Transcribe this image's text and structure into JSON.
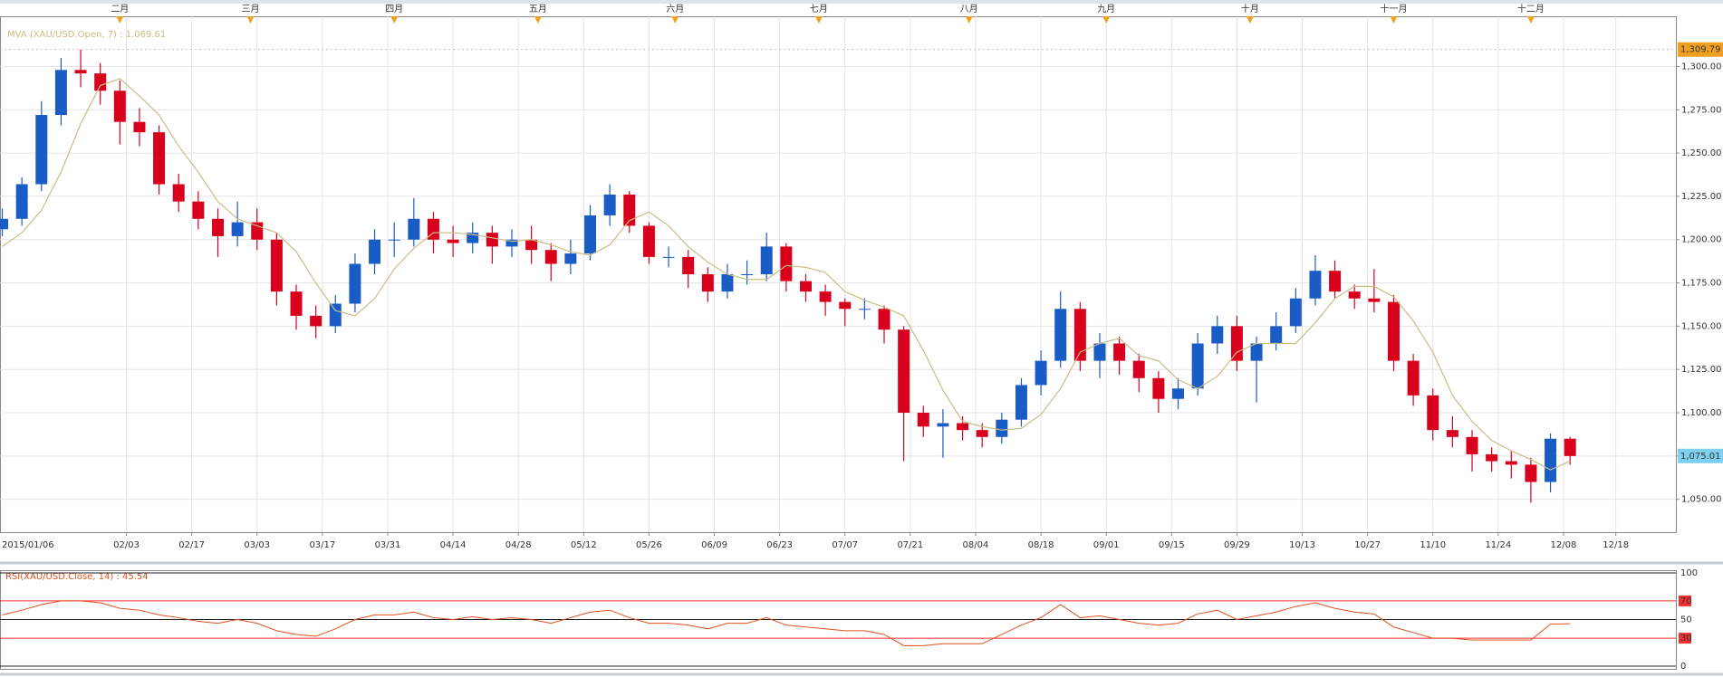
{
  "chart_data": [
    {
      "type": "candlestick",
      "legend": "MVA (XAU/USD.Open, 7) : 1,069.61",
      "x": [
        1,
        4,
        7,
        10,
        13,
        16,
        19,
        22,
        25,
        28,
        31,
        34,
        37,
        40,
        43,
        46,
        49,
        52,
        55,
        58,
        61,
        64,
        67,
        70,
        73,
        76,
        79,
        82,
        85,
        88,
        91,
        94,
        97,
        100,
        103,
        106,
        109,
        112,
        115,
        118,
        121,
        124,
        127,
        130,
        133,
        136,
        139,
        142,
        145,
        148,
        151,
        154,
        157,
        160,
        163,
        166,
        169,
        172,
        175,
        178,
        181,
        184,
        187,
        190,
        193,
        196,
        199,
        202,
        205,
        208,
        211,
        214,
        217,
        220,
        223,
        226,
        229,
        232,
        235,
        238,
        241
      ],
      "open": [
        1206,
        1212,
        1232,
        1272,
        1298,
        1296,
        1286,
        1268,
        1262,
        1232,
        1222,
        1212,
        1202,
        1210,
        1200,
        1170,
        1156,
        1150,
        1163,
        1186,
        1200,
        1200,
        1212,
        1200,
        1198,
        1204,
        1196,
        1200,
        1194,
        1186,
        1192,
        1214,
        1226,
        1208,
        1190,
        1190,
        1180,
        1170,
        1180,
        1180,
        1196,
        1176,
        1170,
        1164,
        1160,
        1160,
        1148,
        1100,
        1092,
        1094,
        1090,
        1086,
        1096,
        1116,
        1130,
        1160,
        1130,
        1140,
        1130,
        1120,
        1108,
        1114,
        1140,
        1150,
        1130,
        1140,
        1150,
        1166,
        1182,
        1170,
        1166,
        1164,
        1130,
        1110,
        1090,
        1086,
        1076,
        1072,
        1070,
        1060,
        1085
      ],
      "high": [
        1218,
        1236,
        1280,
        1305,
        1309.79,
        1302,
        1292,
        1276,
        1266,
        1238,
        1228,
        1218,
        1222,
        1218,
        1204,
        1174,
        1162,
        1168,
        1192,
        1206,
        1210,
        1224,
        1216,
        1208,
        1210,
        1208,
        1206,
        1208,
        1198,
        1200,
        1220,
        1232,
        1228,
        1210,
        1196,
        1194,
        1184,
        1186,
        1188,
        1204,
        1198,
        1180,
        1174,
        1166,
        1166,
        1162,
        1150,
        1104,
        1102,
        1098,
        1094,
        1100,
        1120,
        1136,
        1170,
        1164,
        1146,
        1144,
        1134,
        1124,
        1120,
        1146,
        1156,
        1156,
        1144,
        1158,
        1172,
        1191,
        1188,
        1174,
        1183,
        1168,
        1134,
        1114,
        1098,
        1090,
        1080,
        1078,
        1074,
        1088,
        1086
      ],
      "low": [
        1202,
        1208,
        1228,
        1266,
        1288,
        1278,
        1255,
        1254,
        1226,
        1216,
        1206,
        1190,
        1196,
        1194,
        1162,
        1148,
        1143,
        1146,
        1158,
        1180,
        1190,
        1196,
        1192,
        1190,
        1192,
        1186,
        1190,
        1186,
        1176,
        1180,
        1188,
        1208,
        1204,
        1186,
        1184,
        1172,
        1164,
        1166,
        1174,
        1176,
        1170,
        1164,
        1156,
        1150,
        1154,
        1140,
        1072,
        1086,
        1074,
        1084,
        1080,
        1082,
        1092,
        1110,
        1126,
        1124,
        1120,
        1122,
        1112,
        1100,
        1102,
        1110,
        1134,
        1124,
        1106,
        1136,
        1146,
        1162,
        1166,
        1160,
        1158,
        1124,
        1104,
        1084,
        1080,
        1066,
        1066,
        1062,
        1048,
        1054,
        1070
      ],
      "close": [
        1212,
        1232,
        1272,
        1298,
        1296,
        1286,
        1268,
        1262,
        1232,
        1222,
        1212,
        1202,
        1210,
        1200,
        1170,
        1156,
        1150,
        1163,
        1186,
        1200,
        1200,
        1212,
        1200,
        1198,
        1204,
        1196,
        1200,
        1194,
        1186,
        1192,
        1214,
        1226,
        1208,
        1190,
        1190,
        1180,
        1170,
        1180,
        1180,
        1196,
        1176,
        1170,
        1164,
        1160,
        1160,
        1148,
        1100,
        1092,
        1094,
        1090,
        1086,
        1096,
        1116,
        1130,
        1160,
        1130,
        1140,
        1130,
        1120,
        1108,
        1114,
        1140,
        1150,
        1130,
        1140,
        1150,
        1166,
        1182,
        1170,
        1166,
        1164,
        1130,
        1110,
        1090,
        1086,
        1076,
        1072,
        1070,
        1060,
        1085,
        1075.01
      ],
      "up_color": "#1a5cc6",
      "down_color": "#d8001c",
      "series": [
        {
          "name": "MVA (XAU/USD.Open, 7)",
          "color": "#c9bd85",
          "values": [
            1196,
            1204,
            1217,
            1239,
            1267,
            1289,
            1293,
            1283,
            1272,
            1254,
            1239,
            1222,
            1212,
            1208,
            1204,
            1193,
            1175,
            1159,
            1156,
            1166,
            1183,
            1195,
            1204,
            1204,
            1203,
            1201,
            1199,
            1200,
            1197,
            1193,
            1191,
            1197,
            1211,
            1216,
            1208,
            1196,
            1187,
            1180,
            1177,
            1177,
            1185,
            1184,
            1181,
            1170,
            1165,
            1161,
            1156,
            1136,
            1113,
            1095,
            1092,
            1090,
            1091,
            1099,
            1114,
            1135,
            1140,
            1143,
            1133,
            1130,
            1119,
            1114,
            1121,
            1135,
            1140,
            1140,
            1140,
            1152,
            1166,
            1173,
            1173,
            1167,
            1153,
            1135,
            1110,
            1095,
            1084,
            1078,
            1073,
            1067,
            1072
          ]
        }
      ],
      "xlim": [
        0.65,
        257.2
      ],
      "ylim": [
        1031,
        1329
      ],
      "xticks": [
        {
          "value": 0,
          "label": "2015/01/06"
        },
        {
          "value": 20,
          "label": "02/03"
        },
        {
          "value": 30,
          "label": "02/17"
        },
        {
          "value": 40,
          "label": "03/03"
        },
        {
          "value": 50,
          "label": "03/17"
        },
        {
          "value": 60,
          "label": "03/31"
        },
        {
          "value": 70,
          "label": "04/14"
        },
        {
          "value": 80,
          "label": "04/28"
        },
        {
          "value": 90,
          "label": "05/12"
        },
        {
          "value": 100,
          "label": "05/26"
        },
        {
          "value": 110,
          "label": "06/09"
        },
        {
          "value": 120,
          "label": "06/23"
        },
        {
          "value": 130,
          "label": "07/07"
        },
        {
          "value": 140,
          "label": "07/21"
        },
        {
          "value": 150,
          "label": "08/04"
        },
        {
          "value": 160,
          "label": "08/18"
        },
        {
          "value": 170,
          "label": "09/01"
        },
        {
          "value": 180,
          "label": "09/15"
        },
        {
          "value": 190,
          "label": "09/29"
        },
        {
          "value": 200,
          "label": "10/13"
        },
        {
          "value": 210,
          "label": "10/27"
        },
        {
          "value": 220,
          "label": "11/10"
        },
        {
          "value": 230,
          "label": "11/24"
        },
        {
          "value": 240,
          "label": "12/08"
        },
        {
          "value": 248,
          "label": "12/18"
        }
      ],
      "yticks": [
        {
          "value": 1050,
          "label": "1,050.00"
        },
        {
          "value": 1075,
          "label": "1,075.00"
        },
        {
          "value": 1100,
          "label": "1,100.00"
        },
        {
          "value": 1125,
          "label": "1,125.00"
        },
        {
          "value": 1150,
          "label": "1,150.00"
        },
        {
          "value": 1175,
          "label": "1,175.00"
        },
        {
          "value": 1200,
          "label": "1,200.00"
        },
        {
          "value": 1225,
          "label": "1,225.00"
        },
        {
          "value": 1250,
          "label": "1,250.00"
        },
        {
          "value": 1275,
          "label": "1,275.00"
        },
        {
          "value": 1300,
          "label": "1,300.00"
        }
      ],
      "month_markers": [
        {
          "value": 19,
          "label": "二月"
        },
        {
          "value": 39,
          "label": "三月"
        },
        {
          "value": 61,
          "label": "四月"
        },
        {
          "value": 83,
          "label": "五月"
        },
        {
          "value": 104,
          "label": "六月"
        },
        {
          "value": 126,
          "label": "七月"
        },
        {
          "value": 149,
          "label": "八月"
        },
        {
          "value": 170,
          "label": "九月"
        },
        {
          "value": 192,
          "label": "十月"
        },
        {
          "value": 214,
          "label": "十一月"
        },
        {
          "value": 235,
          "label": "十二月"
        }
      ],
      "price_tags": [
        {
          "value": 1309.79,
          "label": "1,309.79",
          "color": "#f0a020",
          "dashed_line": true
        },
        {
          "value": 1075.01,
          "label": "1,075.01",
          "color": "#7fd0f0",
          "dashed_line": false
        }
      ],
      "grid": true
    },
    {
      "type": "line",
      "title": "RSI(XAU/USD.Close, 14) : 45.54",
      "x": [
        1,
        4,
        7,
        10,
        13,
        16,
        19,
        22,
        25,
        28,
        31,
        34,
        37,
        40,
        43,
        46,
        49,
        52,
        55,
        58,
        61,
        64,
        67,
        70,
        73,
        76,
        79,
        82,
        85,
        88,
        91,
        94,
        97,
        100,
        103,
        106,
        109,
        112,
        115,
        118,
        121,
        124,
        127,
        130,
        133,
        136,
        139,
        142,
        145,
        148,
        151,
        154,
        157,
        160,
        163,
        166,
        169,
        172,
        175,
        178,
        181,
        184,
        187,
        190,
        193,
        196,
        199,
        202,
        205,
        208,
        211,
        214,
        217,
        220,
        223,
        226,
        229,
        232,
        235,
        238,
        241
      ],
      "series": [
        {
          "name": "RSI",
          "color": "#e0501c",
          "values": [
            55,
            60,
            66,
            70,
            70,
            68,
            62,
            60,
            55,
            52,
            48,
            46,
            50,
            46,
            38,
            34,
            32,
            40,
            50,
            55,
            55,
            58,
            52,
            50,
            53,
            50,
            52,
            50,
            46,
            52,
            58,
            60,
            52,
            46,
            46,
            44,
            40,
            46,
            46,
            52,
            44,
            42,
            40,
            38,
            38,
            34,
            22,
            22,
            24,
            24,
            24,
            34,
            44,
            52,
            66,
            52,
            54,
            50,
            46,
            44,
            46,
            56,
            60,
            50,
            54,
            58,
            64,
            68,
            62,
            58,
            56,
            42,
            36,
            30,
            30,
            28,
            28,
            28,
            28,
            45,
            45.54
          ]
        }
      ],
      "xlim": [
        0.65,
        257.2
      ],
      "ylim": [
        0,
        100
      ],
      "yticks": [
        0,
        30,
        50,
        70,
        100
      ],
      "threshold_lines": [
        30,
        70
      ],
      "threshold_color": "#f03030"
    }
  ]
}
